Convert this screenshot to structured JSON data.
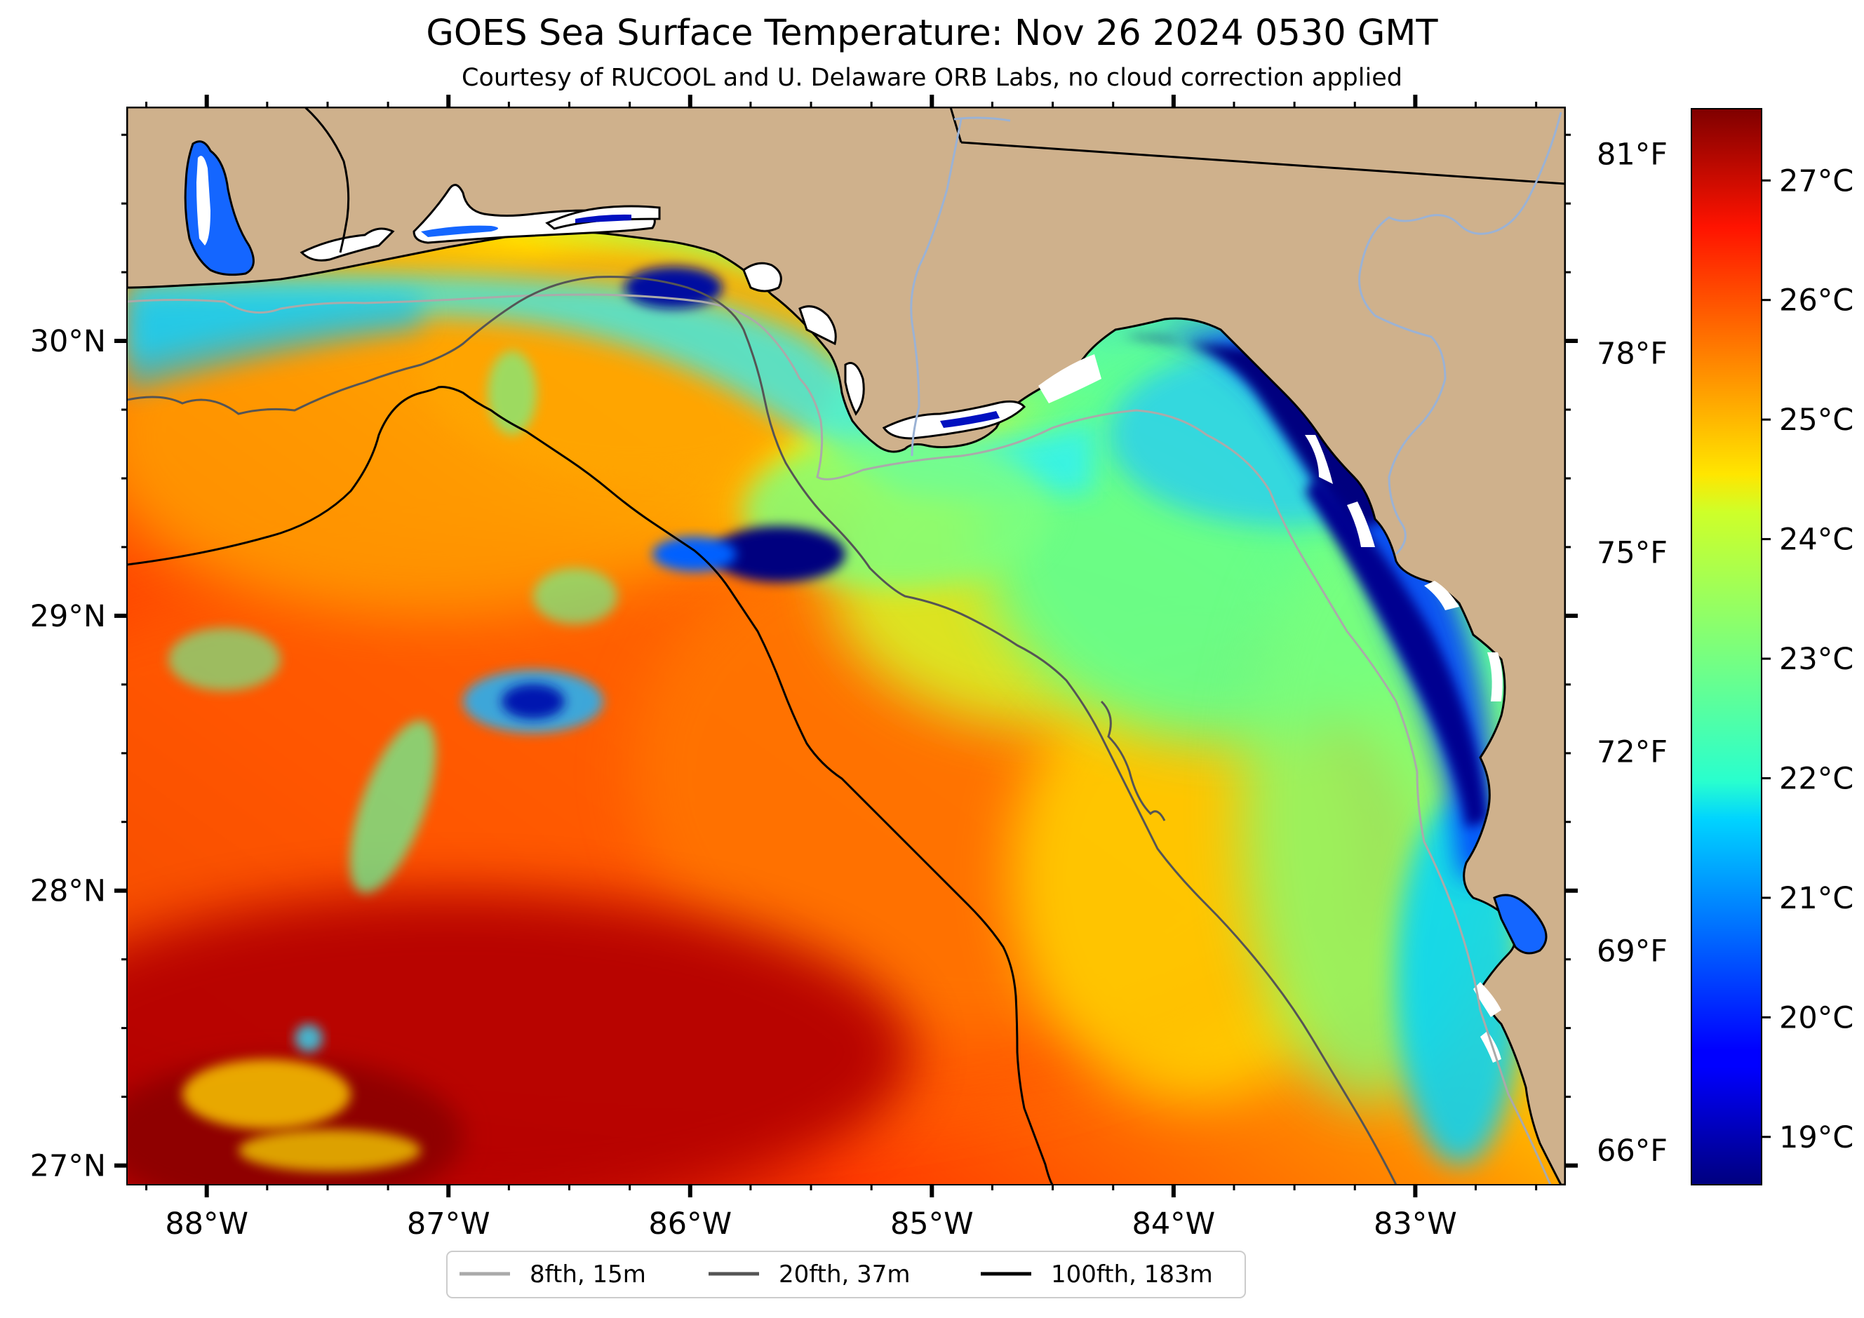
{
  "title": "GOES Sea Surface Temperature: Nov 26 2024 0530 GMT",
  "subtitle": "Courtesy of RUCOOL and U. Delaware ORB Labs, no cloud correction applied",
  "map": {
    "region": "Northeastern Gulf of Mexico / Florida Panhandle",
    "lon_range": [
      -88.33,
      -82.38
    ],
    "lat_range": [
      26.93,
      30.85
    ],
    "land_color": "#cfb18c",
    "isobath_color_8fth": "#aaaaaa",
    "isobath_color_20fth": "#555555",
    "isobath_color_100fth": "#000000",
    "river_color": "#9bb2d4",
    "lon_ticks": [
      {
        "value": -88,
        "label": "88°W"
      },
      {
        "value": -87,
        "label": "87°W"
      },
      {
        "value": -86,
        "label": "86°W"
      },
      {
        "value": -85,
        "label": "85°W"
      },
      {
        "value": -84,
        "label": "84°W"
      },
      {
        "value": -83,
        "label": "83°W"
      }
    ],
    "lat_ticks": [
      {
        "value": 30,
        "label": "30°N"
      },
      {
        "value": 29,
        "label": "29°N"
      },
      {
        "value": 28,
        "label": "28°N"
      },
      {
        "value": 27,
        "label": "27°N"
      }
    ],
    "fahrenheit_ticks": [
      {
        "value": 81,
        "label": "81°F"
      },
      {
        "value": 78,
        "label": "78°F"
      },
      {
        "value": 75,
        "label": "75°F"
      },
      {
        "value": 72,
        "label": "72°F"
      },
      {
        "value": 69,
        "label": "69°F"
      },
      {
        "value": 66,
        "label": "66°F"
      }
    ]
  },
  "colorbar": {
    "colormap": "jet",
    "min_c": 18.6,
    "max_c": 27.6,
    "ticks": [
      {
        "value": 27,
        "label": "27°C"
      },
      {
        "value": 26,
        "label": "26°C"
      },
      {
        "value": 25,
        "label": "25°C"
      },
      {
        "value": 24,
        "label": "24°C"
      },
      {
        "value": 23,
        "label": "23°C"
      },
      {
        "value": 22,
        "label": "22°C"
      },
      {
        "value": 21,
        "label": "21°C"
      },
      {
        "value": 20,
        "label": "20°C"
      },
      {
        "value": 19,
        "label": "19°C"
      }
    ]
  },
  "legend": {
    "items": [
      {
        "label": "8fth, 15m",
        "color": "#aaaaaa"
      },
      {
        "label": "20fth, 37m",
        "color": "#555555"
      },
      {
        "label": "100fth, 183m",
        "color": "#000000"
      }
    ]
  }
}
